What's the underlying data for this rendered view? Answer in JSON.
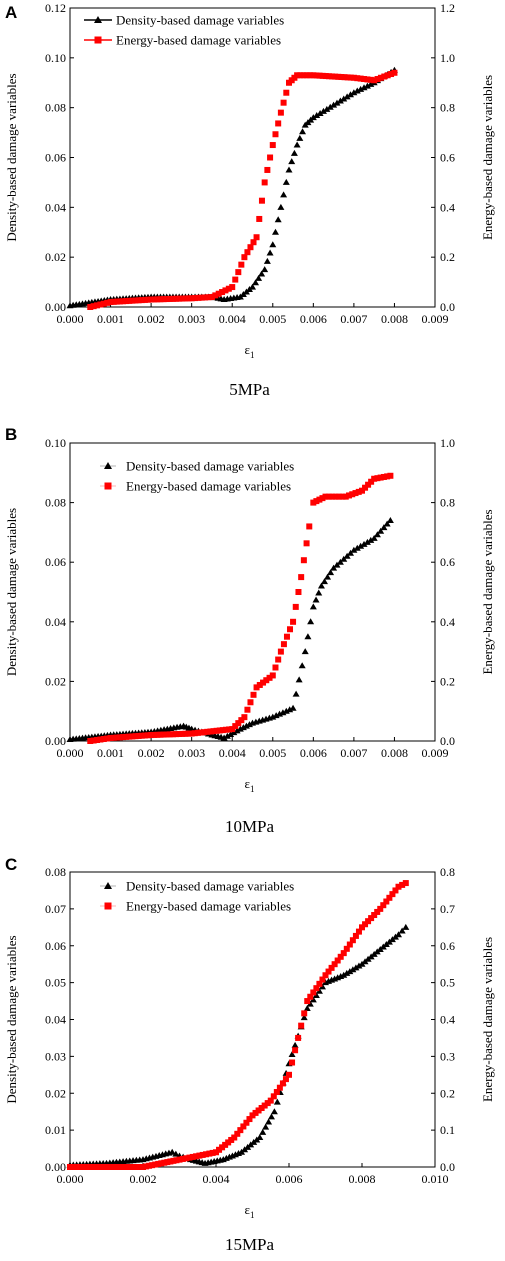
{
  "chart_data": [
    {
      "type": "scatter",
      "panel_label": "A",
      "caption": "5MPa",
      "xlabel": "ε",
      "xlabel_sub": "1",
      "ylabel": "Density-based damage variables",
      "y2label": "Energy-based damage variables",
      "xlim": [
        0,
        0.009
      ],
      "ylim": [
        0,
        0.12
      ],
      "y2lim": [
        0,
        1.2
      ],
      "xticks": [
        "0.000",
        "0.001",
        "0.002",
        "0.003",
        "0.004",
        "0.005",
        "0.006",
        "0.007",
        "0.008",
        "0.009"
      ],
      "yticks": [
        "0.00",
        "0.02",
        "0.04",
        "0.06",
        "0.08",
        "0.10",
        "0.12"
      ],
      "y2ticks": [
        "0.0",
        "0.2",
        "0.4",
        "0.6",
        "0.8",
        "1.0",
        "1.2"
      ],
      "legend_position": "top-left",
      "legend_style": "line",
      "series": [
        {
          "name": "Density-based damage variables",
          "axis": "left",
          "marker": "triangle",
          "color": "#000000",
          "points": [
            [
              0,
              0.0005
            ],
            [
              0.001,
              0.003
            ],
            [
              0.002,
              0.004
            ],
            [
              0.003,
              0.004
            ],
            [
              0.0035,
              0.004
            ],
            [
              0.0038,
              0.003
            ],
            [
              0.0042,
              0.004
            ],
            [
              0.0045,
              0.008
            ],
            [
              0.0048,
              0.015
            ],
            [
              0.005,
              0.025
            ],
            [
              0.0052,
              0.04
            ],
            [
              0.0054,
              0.055
            ],
            [
              0.0056,
              0.065
            ],
            [
              0.0058,
              0.073
            ],
            [
              0.006,
              0.076
            ],
            [
              0.0065,
              0.081
            ],
            [
              0.007,
              0.086
            ],
            [
              0.0075,
              0.09
            ],
            [
              0.008,
              0.095
            ]
          ]
        },
        {
          "name": "Energy-based damage variables",
          "axis": "right",
          "marker": "square",
          "color": "#ff0000",
          "points": [
            [
              0.0005,
              0
            ],
            [
              0.001,
              0.02
            ],
            [
              0.002,
              0.03
            ],
            [
              0.003,
              0.035
            ],
            [
              0.0035,
              0.04
            ],
            [
              0.004,
              0.08
            ],
            [
              0.0043,
              0.2
            ],
            [
              0.0046,
              0.28
            ],
            [
              0.0048,
              0.5
            ],
            [
              0.005,
              0.65
            ],
            [
              0.0052,
              0.78
            ],
            [
              0.0054,
              0.9
            ],
            [
              0.0056,
              0.93
            ],
            [
              0.006,
              0.93
            ],
            [
              0.007,
              0.92
            ],
            [
              0.0075,
              0.91
            ],
            [
              0.008,
              0.94
            ]
          ]
        }
      ]
    },
    {
      "type": "scatter",
      "panel_label": "B",
      "caption": "10MPa",
      "xlabel": "ε",
      "xlabel_sub": "1",
      "ylabel": "Density-based damage variables",
      "y2label": "Energy-based damage variables",
      "xlim": [
        0,
        0.009
      ],
      "ylim": [
        0,
        0.1
      ],
      "y2lim": [
        0,
        1.0
      ],
      "xticks": [
        "0.000",
        "0.001",
        "0.002",
        "0.003",
        "0.004",
        "0.005",
        "0.006",
        "0.007",
        "0.008",
        "0.009"
      ],
      "yticks": [
        "0.00",
        "0.02",
        "0.04",
        "0.06",
        "0.08",
        "0.10"
      ],
      "y2ticks": [
        "0.0",
        "0.2",
        "0.4",
        "0.6",
        "0.8",
        "1.0"
      ],
      "legend_position": "top-left",
      "legend_style": "marker",
      "series": [
        {
          "name": "Density-based damage variables",
          "axis": "left",
          "marker": "triangle",
          "color": "#000000",
          "points": [
            [
              0,
              0.0005
            ],
            [
              0.001,
              0.002
            ],
            [
              0.002,
              0.003
            ],
            [
              0.0028,
              0.005
            ],
            [
              0.003,
              0.004
            ],
            [
              0.0035,
              0.002
            ],
            [
              0.0038,
              0.001
            ],
            [
              0.0042,
              0.004
            ],
            [
              0.0045,
              0.006
            ],
            [
              0.005,
              0.008
            ],
            [
              0.0055,
              0.011
            ],
            [
              0.0058,
              0.03
            ],
            [
              0.006,
              0.045
            ],
            [
              0.0062,
              0.052
            ],
            [
              0.0065,
              0.058
            ],
            [
              0.007,
              0.064
            ],
            [
              0.0075,
              0.068
            ],
            [
              0.0079,
              0.074
            ]
          ]
        },
        {
          "name": "Energy-based damage variables",
          "axis": "right",
          "marker": "square",
          "color": "#ff0000",
          "points": [
            [
              0.0005,
              0
            ],
            [
              0.001,
              0.01
            ],
            [
              0.002,
              0.02
            ],
            [
              0.003,
              0.025
            ],
            [
              0.004,
              0.04
            ],
            [
              0.0043,
              0.08
            ],
            [
              0.0046,
              0.18
            ],
            [
              0.005,
              0.22
            ],
            [
              0.0052,
              0.3
            ],
            [
              0.0055,
              0.4
            ],
            [
              0.0057,
              0.55
            ],
            [
              0.0059,
              0.72
            ],
            [
              0.006,
              0.8
            ],
            [
              0.0063,
              0.82
            ],
            [
              0.0068,
              0.82
            ],
            [
              0.0072,
              0.84
            ],
            [
              0.0075,
              0.88
            ],
            [
              0.0079,
              0.89
            ]
          ]
        }
      ]
    },
    {
      "type": "scatter",
      "panel_label": "C",
      "caption": "15MPa",
      "xlabel": "ε",
      "xlabel_sub": "1",
      "ylabel": "Density-based damage variables",
      "y2label": "Energy-based damage variables",
      "xlim": [
        0,
        0.01
      ],
      "ylim": [
        0,
        0.08
      ],
      "y2lim": [
        0,
        0.8
      ],
      "xticks": [
        "0.000",
        "0.002",
        "0.004",
        "0.006",
        "0.008",
        "0.010"
      ],
      "yticks": [
        "0.00",
        "0.01",
        "0.02",
        "0.03",
        "0.04",
        "0.05",
        "0.06",
        "0.07",
        "0.08"
      ],
      "y2ticks": [
        "0.0",
        "0.1",
        "0.2",
        "0.3",
        "0.4",
        "0.5",
        "0.6",
        "0.7",
        "0.8"
      ],
      "legend_position": "top-left",
      "legend_style": "marker",
      "series": [
        {
          "name": "Density-based damage variables",
          "axis": "left",
          "marker": "triangle",
          "color": "#000000",
          "points": [
            [
              0,
              0.0005
            ],
            [
              0.001,
              0.001
            ],
            [
              0.002,
              0.002
            ],
            [
              0.0028,
              0.004
            ],
            [
              0.003,
              0.003
            ],
            [
              0.0033,
              0.002
            ],
            [
              0.0037,
              0.001
            ],
            [
              0.0042,
              0.002
            ],
            [
              0.0047,
              0.004
            ],
            [
              0.0052,
              0.008
            ],
            [
              0.0056,
              0.015
            ],
            [
              0.006,
              0.028
            ],
            [
              0.0065,
              0.043
            ],
            [
              0.007,
              0.05
            ],
            [
              0.0075,
              0.052
            ],
            [
              0.008,
              0.055
            ],
            [
              0.0085,
              0.059
            ],
            [
              0.009,
              0.063
            ],
            [
              0.0092,
              0.065
            ]
          ]
        },
        {
          "name": "Energy-based damage variables",
          "axis": "right",
          "marker": "square",
          "color": "#ff0000",
          "points": [
            [
              0,
              0
            ],
            [
              0.001,
              0
            ],
            [
              0.002,
              0
            ],
            [
              0.0025,
              0.01
            ],
            [
              0.003,
              0.02
            ],
            [
              0.004,
              0.04
            ],
            [
              0.0045,
              0.08
            ],
            [
              0.005,
              0.14
            ],
            [
              0.0055,
              0.18
            ],
            [
              0.006,
              0.25
            ],
            [
              0.0065,
              0.45
            ],
            [
              0.007,
              0.52
            ],
            [
              0.0075,
              0.58
            ],
            [
              0.008,
              0.65
            ],
            [
              0.0085,
              0.7
            ],
            [
              0.009,
              0.76
            ],
            [
              0.0092,
              0.77
            ]
          ]
        }
      ]
    }
  ]
}
